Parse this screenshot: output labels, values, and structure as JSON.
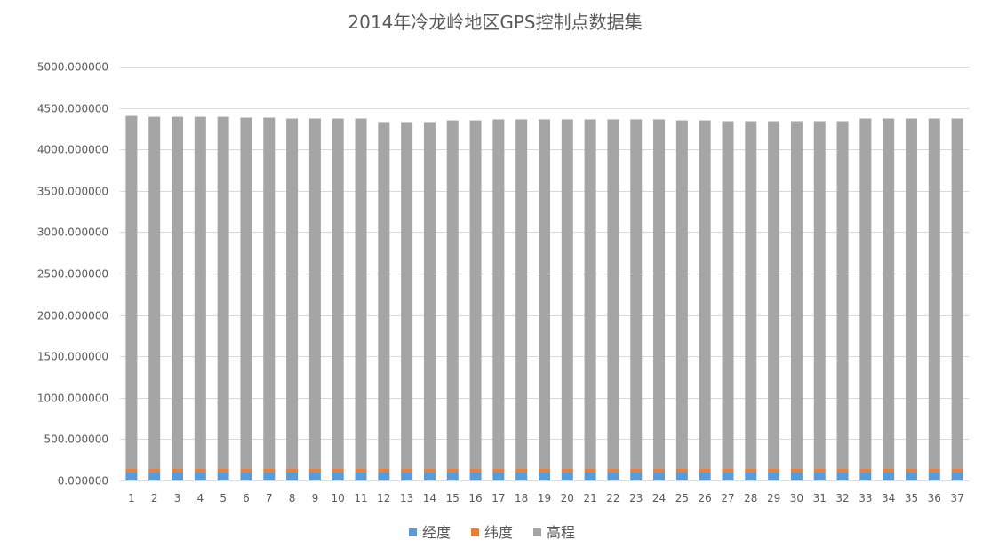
{
  "chart_data": {
    "type": "bar",
    "stacked": true,
    "title": "2014年冷龙岭地区GPS控制点数据集",
    "xlabel": "",
    "ylabel": "",
    "ylim": [
      0,
      5000
    ],
    "y_ticks": [
      "0.000000",
      "500.000000",
      "1000.000000",
      "1500.000000",
      "2000.000000",
      "2500.000000",
      "3000.000000",
      "3500.000000",
      "4000.000000",
      "4500.000000",
      "5000.000000"
    ],
    "grid": true,
    "legend_position": "bottom",
    "categories": [
      "1",
      "2",
      "3",
      "4",
      "5",
      "6",
      "7",
      "8",
      "9",
      "10",
      "11",
      "12",
      "13",
      "14",
      "15",
      "16",
      "17",
      "18",
      "19",
      "20",
      "21",
      "22",
      "23",
      "24",
      "25",
      "26",
      "27",
      "28",
      "29",
      "30",
      "31",
      "32",
      "33",
      "34",
      "35",
      "36",
      "37"
    ],
    "series": [
      {
        "name": "经度",
        "color": "#5b9bd5",
        "values": [
          101.3,
          101.3,
          101.3,
          101.3,
          101.3,
          101.3,
          101.3,
          101.3,
          101.3,
          101.3,
          101.3,
          101.3,
          101.3,
          101.3,
          101.3,
          101.3,
          101.3,
          101.3,
          101.3,
          101.3,
          101.3,
          101.3,
          101.3,
          101.3,
          101.3,
          101.3,
          101.3,
          101.3,
          101.3,
          101.3,
          101.3,
          101.3,
          101.3,
          101.3,
          101.3,
          101.3,
          101.3
        ]
      },
      {
        "name": "纬度",
        "color": "#ed7d31",
        "values": [
          37.8,
          37.8,
          37.8,
          37.8,
          37.8,
          37.8,
          37.8,
          37.8,
          37.8,
          37.8,
          37.8,
          37.8,
          37.8,
          37.8,
          37.8,
          37.8,
          37.8,
          37.8,
          37.8,
          37.8,
          37.8,
          37.8,
          37.8,
          37.8,
          37.8,
          37.8,
          37.8,
          37.8,
          37.8,
          37.8,
          37.8,
          37.8,
          37.8,
          37.8,
          37.8,
          37.8,
          37.8
        ]
      },
      {
        "name": "高程",
        "color": "#a5a5a5",
        "values": [
          4265,
          4254,
          4254,
          4254,
          4254,
          4244,
          4244,
          4233,
          4233,
          4233,
          4233,
          4191,
          4191,
          4191,
          4211,
          4211,
          4223,
          4223,
          4223,
          4223,
          4223,
          4223,
          4223,
          4223,
          4211,
          4211,
          4201,
          4201,
          4201,
          4201,
          4201,
          4201,
          4233,
          4233,
          4233,
          4233,
          4233
        ]
      }
    ]
  }
}
